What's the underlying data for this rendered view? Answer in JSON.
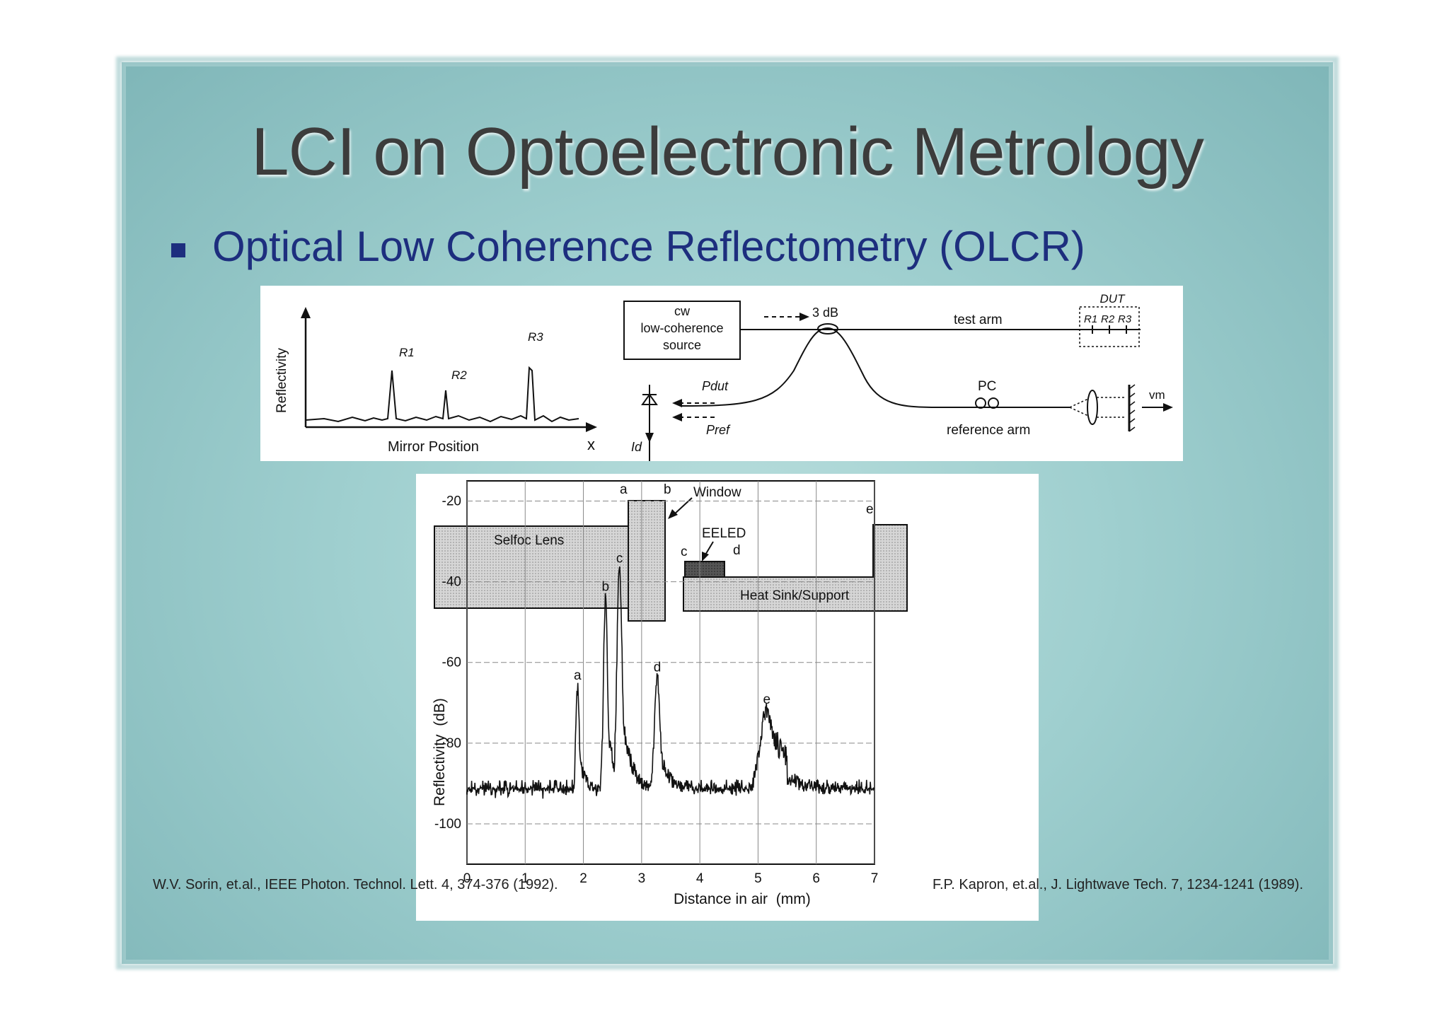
{
  "slide": {
    "title": "LCI on Optoelectronic Metrology",
    "bullet": "Optical Low Coherence Reflectometry (OLCR)"
  },
  "figure_top_left": {
    "ylabel": "Reflectivity",
    "xlabel": "Mirror Position",
    "x_axis_letter": "x",
    "peaks": [
      "R1",
      "R2",
      "R3"
    ]
  },
  "figure_top_right": {
    "source_lines": [
      "cw",
      "low-coherence",
      "source"
    ],
    "coupler": "3 dB",
    "test_arm": "test arm",
    "dut": "DUT",
    "dut_reflectors": [
      "R1",
      "R2",
      "R3"
    ],
    "p_dut": "Pdut",
    "p_ref": "Pref",
    "pc": "PC",
    "reference_arm": "reference arm",
    "vm": "vm",
    "id": "Id"
  },
  "figure_bottom": {
    "schematic": {
      "selfoc_lens": "Selfoc Lens",
      "window": "Window",
      "eeled": "EELED",
      "heat_sink": "Heat Sink/Support",
      "labels": [
        "a",
        "b",
        "c",
        "d",
        "e"
      ]
    },
    "chart_data": {
      "type": "line",
      "xlabel": "Distance in air  (mm)",
      "ylabel": "Reflectivity  (dB)",
      "xlim": [
        0,
        7
      ],
      "ylim": [
        -110,
        -15
      ],
      "xticks": [
        "0",
        "1",
        "2",
        "3",
        "4",
        "5",
        "6",
        "7"
      ],
      "yticks": [
        "-20",
        "-40",
        "-60",
        "-80",
        "-100"
      ],
      "grid": true,
      "noise_floor": -93,
      "peaks": [
        {
          "label": "a",
          "x": 1.9,
          "y": -66
        },
        {
          "label": "b",
          "x": 2.38,
          "y": -44
        },
        {
          "label": "c",
          "x": 2.62,
          "y": -37
        },
        {
          "label": "d",
          "x": 3.27,
          "y": -64
        },
        {
          "label": "e",
          "x": 5.15,
          "y": -72
        }
      ]
    }
  },
  "citations": {
    "left": "W.V. Sorin, et.al., IEEE Photon. Technol. Lett. 4, 374-376 (1992).",
    "right": "F.P. Kapron, et.al., J. Lightwave Tech. 7, 1234-1241 (1989)."
  }
}
